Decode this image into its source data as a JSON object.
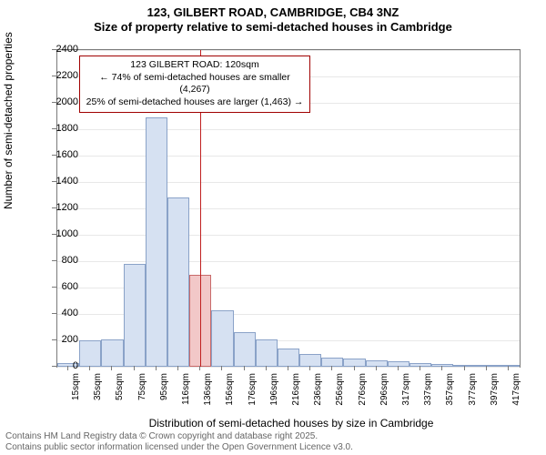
{
  "title": "123, GILBERT ROAD, CAMBRIDGE, CB4 3NZ",
  "subtitle": "Size of property relative to semi-detached houses in Cambridge",
  "histogram": {
    "type": "histogram",
    "ylabel": "Number of semi-detached properties",
    "xlabel": "Distribution of semi-detached houses by size in Cambridge",
    "ylim": [
      0,
      2400
    ],
    "ytick_step": 200,
    "bar_color": "#d6e1f2",
    "bar_border": "#8aa2c8",
    "highlight_bar_color": "#f2c8c8",
    "highlight_bar_border": "#c86a6a",
    "pointer_color": "#c02020",
    "grid_color": "#e8e8e8",
    "axis_color": "#7a7a7a",
    "background_color": "#ffffff",
    "xticks": [
      "15sqm",
      "35sqm",
      "55sqm",
      "75sqm",
      "95sqm",
      "116sqm",
      "136sqm",
      "156sqm",
      "176sqm",
      "196sqm",
      "216sqm",
      "236sqm",
      "256sqm",
      "276sqm",
      "296sqm",
      "317sqm",
      "337sqm",
      "357sqm",
      "377sqm",
      "397sqm",
      "417sqm"
    ],
    "bars": [
      {
        "v": 30
      },
      {
        "v": 200
      },
      {
        "v": 210
      },
      {
        "v": 780
      },
      {
        "v": 1890
      },
      {
        "v": 1280
      },
      {
        "v": 700,
        "highlight": true
      },
      {
        "v": 430
      },
      {
        "v": 260
      },
      {
        "v": 210
      },
      {
        "v": 140
      },
      {
        "v": 100
      },
      {
        "v": 70
      },
      {
        "v": 60
      },
      {
        "v": 50
      },
      {
        "v": 40
      },
      {
        "v": 30
      },
      {
        "v": 20
      },
      {
        "v": 10
      },
      {
        "v": 5
      },
      {
        "v": 2
      }
    ],
    "callout": {
      "border_color": "#a00000",
      "line1": "123 GILBERT ROAD: 120sqm",
      "line2": "← 74% of semi-detached houses are smaller (4,267)",
      "line3": "25% of semi-detached houses are larger (1,463) →"
    },
    "title_fontsize": 13,
    "label_fontsize": 12,
    "tick_fontsize": 11
  },
  "footer": {
    "line1": "Contains HM Land Registry data © Crown copyright and database right 2025.",
    "line2": "Contains public sector information licensed under the Open Government Licence v3.0."
  }
}
